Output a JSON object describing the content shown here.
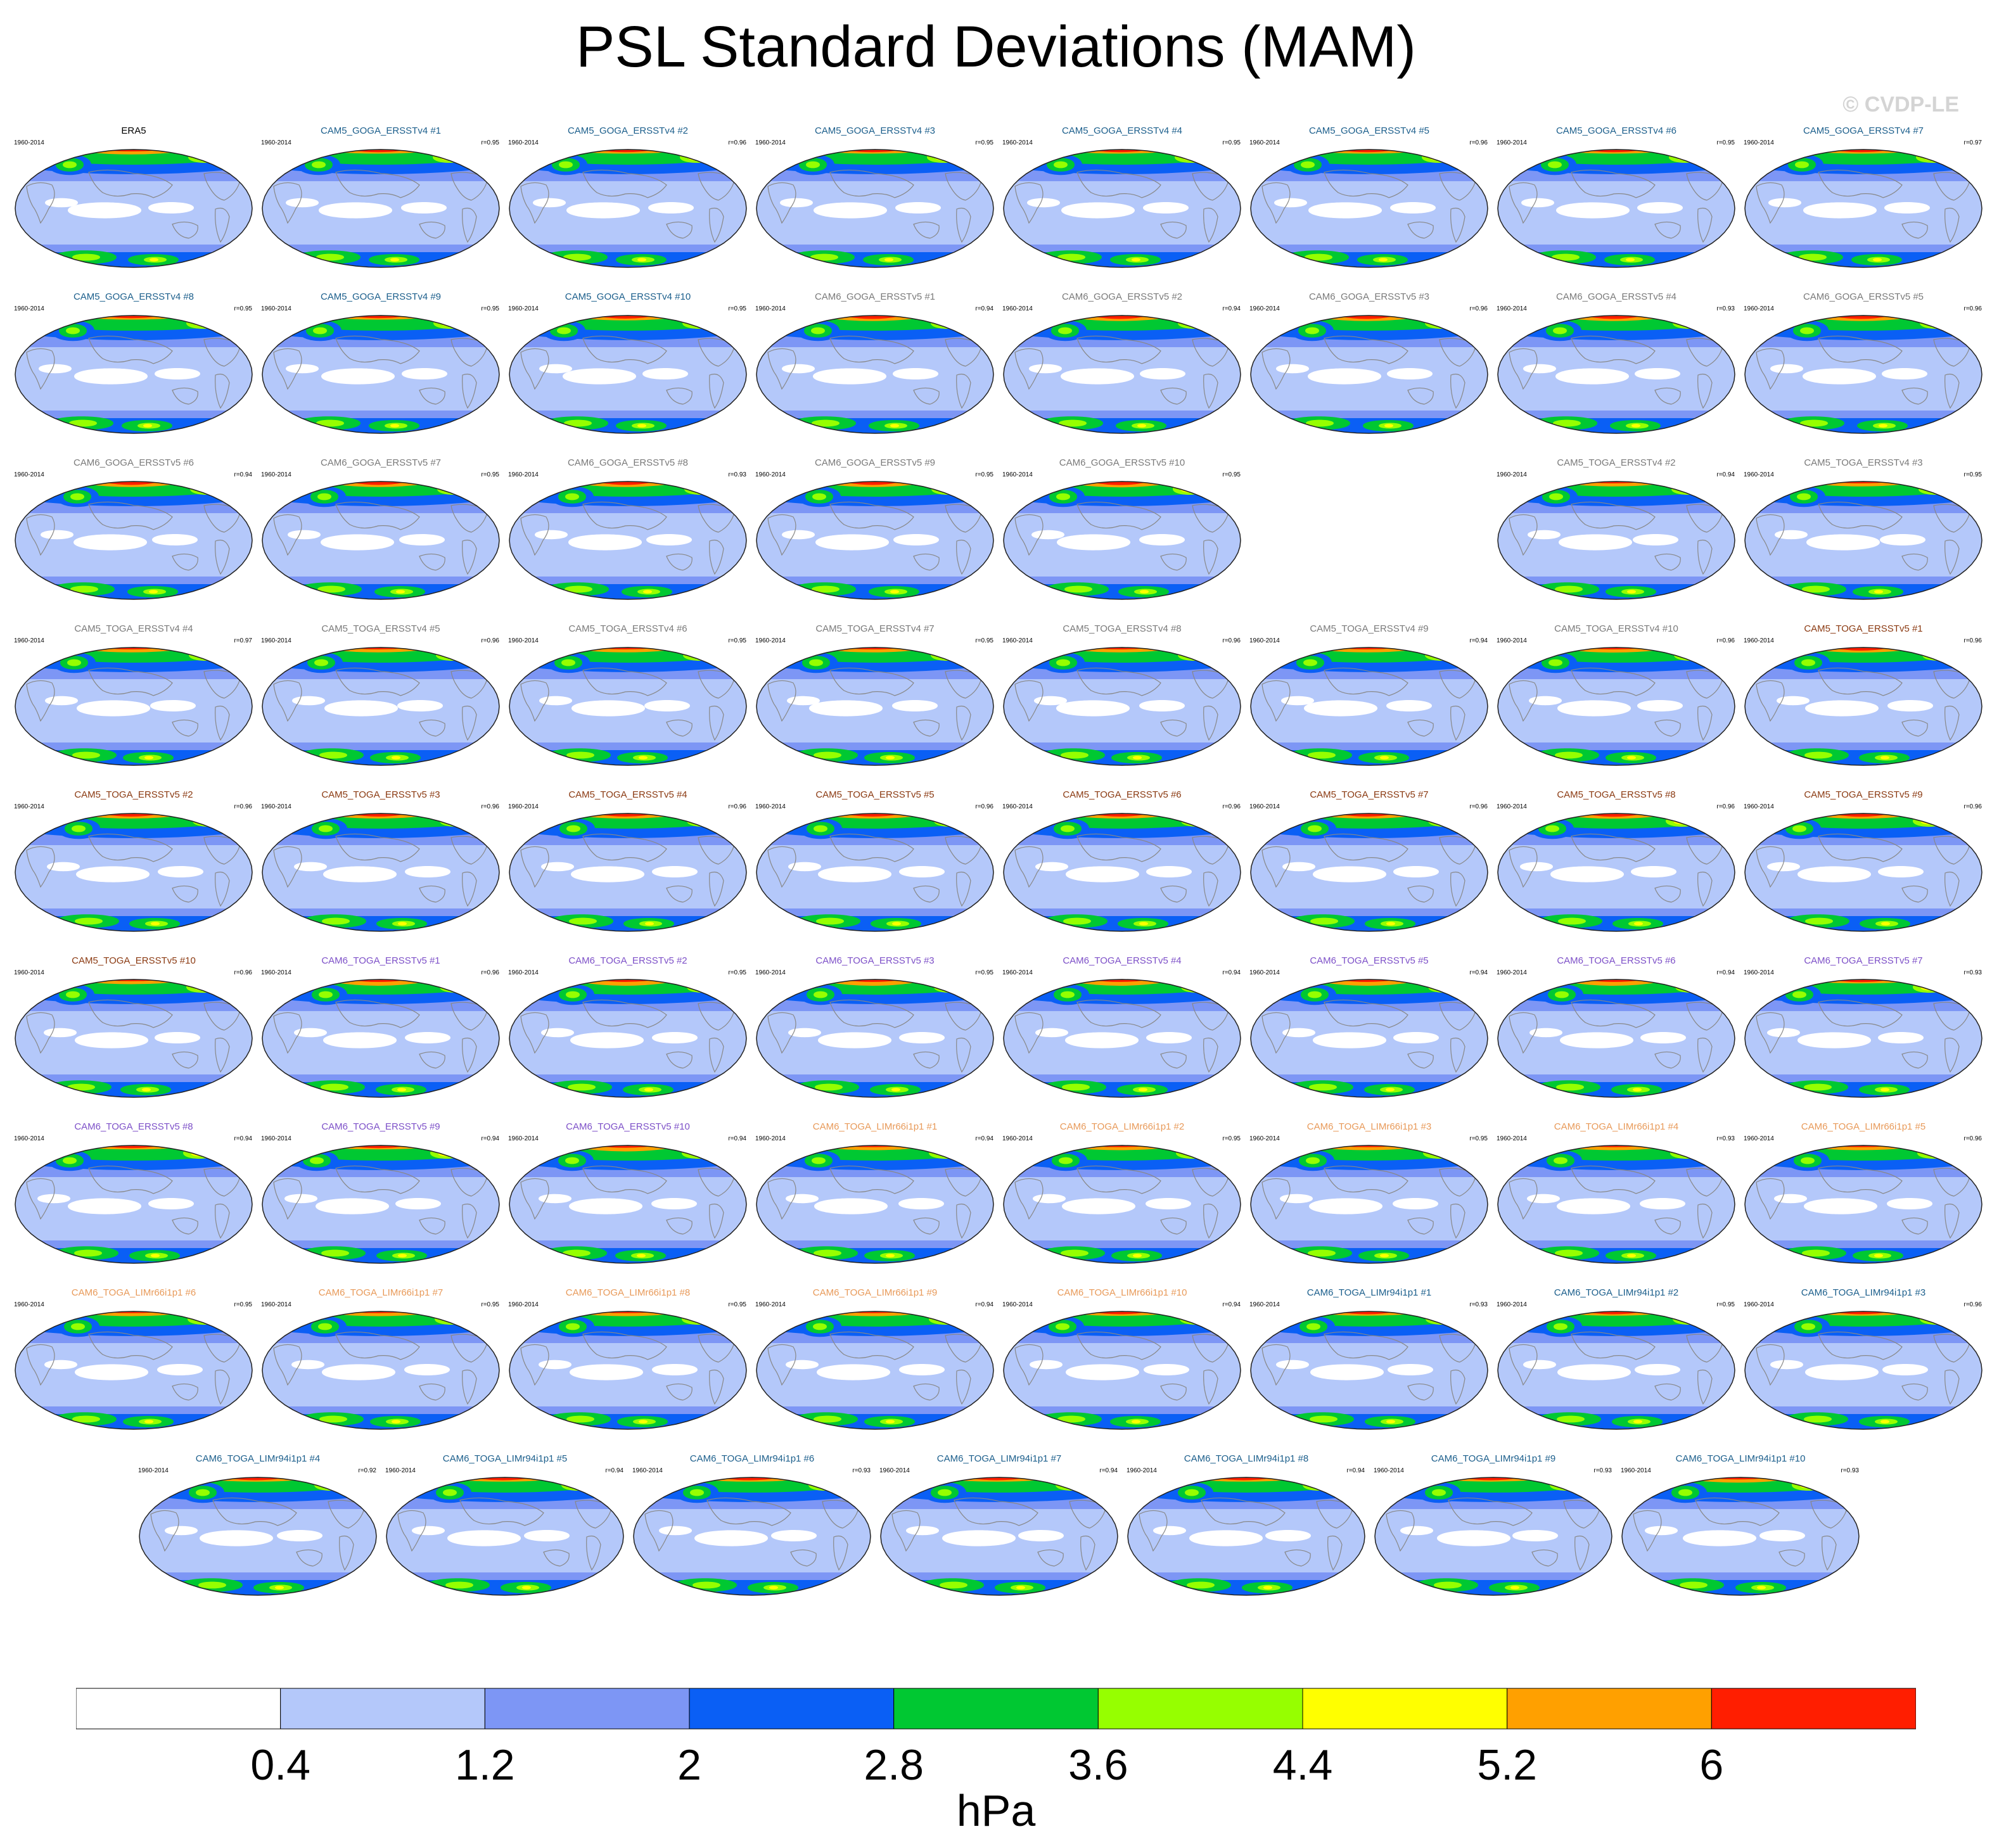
{
  "title": "PSL Standard Deviations (MAM)",
  "watermark": "© CVDP-LE",
  "default_years": "1960-2014",
  "group_colors": {
    "ref": "#000000",
    "CAM5_GOGA_ERSSTv4": "#1c5f8c",
    "CAM6_GOGA_ERSSTv5": "#7a7a7a",
    "CAM5_TOGA_ERSSTv4": "#7a7a7a",
    "CAM5_TOGA_ERSSTv5": "#8b3a12",
    "CAM6_TOGA_ERSSTv5": "#7d50c8",
    "CAM6_TOGA_LIMr66i1p1": "#e89a5a",
    "CAM6_TOGA_LIMr94i1p1": "#1c5f8c"
  },
  "panels": [
    {
      "row": 0,
      "col": 0,
      "title": "ERA5",
      "group": "ref",
      "r": ""
    },
    {
      "row": 0,
      "col": 1,
      "title": "CAM5_GOGA_ERSSTv4 #1",
      "group": "CAM5_GOGA_ERSSTv4",
      "r": "r=0.95"
    },
    {
      "row": 0,
      "col": 2,
      "title": "CAM5_GOGA_ERSSTv4 #2",
      "group": "CAM5_GOGA_ERSSTv4",
      "r": "r=0.96"
    },
    {
      "row": 0,
      "col": 3,
      "title": "CAM5_GOGA_ERSSTv4 #3",
      "group": "CAM5_GOGA_ERSSTv4",
      "r": "r=0.95"
    },
    {
      "row": 0,
      "col": 4,
      "title": "CAM5_GOGA_ERSSTv4 #4",
      "group": "CAM5_GOGA_ERSSTv4",
      "r": "r=0.95"
    },
    {
      "row": 0,
      "col": 5,
      "title": "CAM5_GOGA_ERSSTv4 #5",
      "group": "CAM5_GOGA_ERSSTv4",
      "r": "r=0.96"
    },
    {
      "row": 0,
      "col": 6,
      "title": "CAM5_GOGA_ERSSTv4 #6",
      "group": "CAM5_GOGA_ERSSTv4",
      "r": "r=0.95"
    },
    {
      "row": 0,
      "col": 7,
      "title": "CAM5_GOGA_ERSSTv4 #7",
      "group": "CAM5_GOGA_ERSSTv4",
      "r": "r=0.97"
    },
    {
      "row": 1,
      "col": 0,
      "title": "CAM5_GOGA_ERSSTv4 #8",
      "group": "CAM5_GOGA_ERSSTv4",
      "r": "r=0.95"
    },
    {
      "row": 1,
      "col": 1,
      "title": "CAM5_GOGA_ERSSTv4 #9",
      "group": "CAM5_GOGA_ERSSTv4",
      "r": "r=0.95"
    },
    {
      "row": 1,
      "col": 2,
      "title": "CAM5_GOGA_ERSSTv4 #10",
      "group": "CAM5_GOGA_ERSSTv4",
      "r": "r=0.95"
    },
    {
      "row": 1,
      "col": 3,
      "title": "CAM6_GOGA_ERSSTv5 #1",
      "group": "CAM6_GOGA_ERSSTv5",
      "r": "r=0.94"
    },
    {
      "row": 1,
      "col": 4,
      "title": "CAM6_GOGA_ERSSTv5 #2",
      "group": "CAM6_GOGA_ERSSTv5",
      "r": "r=0.94"
    },
    {
      "row": 1,
      "col": 5,
      "title": "CAM6_GOGA_ERSSTv5 #3",
      "group": "CAM6_GOGA_ERSSTv5",
      "r": "r=0.96"
    },
    {
      "row": 1,
      "col": 6,
      "title": "CAM6_GOGA_ERSSTv5 #4",
      "group": "CAM6_GOGA_ERSSTv5",
      "r": "r=0.93"
    },
    {
      "row": 1,
      "col": 7,
      "title": "CAM6_GOGA_ERSSTv5 #5",
      "group": "CAM6_GOGA_ERSSTv5",
      "r": "r=0.96"
    },
    {
      "row": 2,
      "col": 0,
      "title": "CAM6_GOGA_ERSSTv5 #6",
      "group": "CAM6_GOGA_ERSSTv5",
      "r": "r=0.94"
    },
    {
      "row": 2,
      "col": 1,
      "title": "CAM6_GOGA_ERSSTv5 #7",
      "group": "CAM6_GOGA_ERSSTv5",
      "r": "r=0.95"
    },
    {
      "row": 2,
      "col": 2,
      "title": "CAM6_GOGA_ERSSTv5 #8",
      "group": "CAM6_GOGA_ERSSTv5",
      "r": "r=0.93"
    },
    {
      "row": 2,
      "col": 3,
      "title": "CAM6_GOGA_ERSSTv5 #9",
      "group": "CAM6_GOGA_ERSSTv5",
      "r": "r=0.95"
    },
    {
      "row": 2,
      "col": 4,
      "title": "CAM6_GOGA_ERSSTv5 #10",
      "group": "CAM6_GOGA_ERSSTv5",
      "r": "r=0.95"
    },
    {
      "row": 2,
      "col": 6,
      "title": "CAM5_TOGA_ERSSTv4 #2",
      "group": "CAM5_TOGA_ERSSTv4",
      "r": "r=0.94"
    },
    {
      "row": 2,
      "col": 7,
      "title": "CAM5_TOGA_ERSSTv4 #3",
      "group": "CAM5_TOGA_ERSSTv4",
      "r": "r=0.95"
    },
    {
      "row": 3,
      "col": 0,
      "title": "CAM5_TOGA_ERSSTv4 #4",
      "group": "CAM5_TOGA_ERSSTv4",
      "r": "r=0.97"
    },
    {
      "row": 3,
      "col": 1,
      "title": "CAM5_TOGA_ERSSTv4 #5",
      "group": "CAM5_TOGA_ERSSTv4",
      "r": "r=0.96"
    },
    {
      "row": 3,
      "col": 2,
      "title": "CAM5_TOGA_ERSSTv4 #6",
      "group": "CAM5_TOGA_ERSSTv4",
      "r": "r=0.95"
    },
    {
      "row": 3,
      "col": 3,
      "title": "CAM5_TOGA_ERSSTv4 #7",
      "group": "CAM5_TOGA_ERSSTv4",
      "r": "r=0.95"
    },
    {
      "row": 3,
      "col": 4,
      "title": "CAM5_TOGA_ERSSTv4 #8",
      "group": "CAM5_TOGA_ERSSTv4",
      "r": "r=0.96"
    },
    {
      "row": 3,
      "col": 5,
      "title": "CAM5_TOGA_ERSSTv4 #9",
      "group": "CAM5_TOGA_ERSSTv4",
      "r": "r=0.94"
    },
    {
      "row": 3,
      "col": 6,
      "title": "CAM5_TOGA_ERSSTv4 #10",
      "group": "CAM5_TOGA_ERSSTv4",
      "r": "r=0.96"
    },
    {
      "row": 3,
      "col": 7,
      "title": "CAM5_TOGA_ERSSTv5 #1",
      "group": "CAM5_TOGA_ERSSTv5",
      "r": "r=0.96"
    },
    {
      "row": 4,
      "col": 0,
      "title": "CAM5_TOGA_ERSSTv5 #2",
      "group": "CAM5_TOGA_ERSSTv5",
      "r": "r=0.96"
    },
    {
      "row": 4,
      "col": 1,
      "title": "CAM5_TOGA_ERSSTv5 #3",
      "group": "CAM5_TOGA_ERSSTv5",
      "r": "r=0.96"
    },
    {
      "row": 4,
      "col": 2,
      "title": "CAM5_TOGA_ERSSTv5 #4",
      "group": "CAM5_TOGA_ERSSTv5",
      "r": "r=0.96"
    },
    {
      "row": 4,
      "col": 3,
      "title": "CAM5_TOGA_ERSSTv5 #5",
      "group": "CAM5_TOGA_ERSSTv5",
      "r": "r=0.96"
    },
    {
      "row": 4,
      "col": 4,
      "title": "CAM5_TOGA_ERSSTv5 #6",
      "group": "CAM5_TOGA_ERSSTv5",
      "r": "r=0.96"
    },
    {
      "row": 4,
      "col": 5,
      "title": "CAM5_TOGA_ERSSTv5 #7",
      "group": "CAM5_TOGA_ERSSTv5",
      "r": "r=0.96"
    },
    {
      "row": 4,
      "col": 6,
      "title": "CAM5_TOGA_ERSSTv5 #8",
      "group": "CAM5_TOGA_ERSSTv5",
      "r": "r=0.96"
    },
    {
      "row": 4,
      "col": 7,
      "title": "CAM5_TOGA_ERSSTv5 #9",
      "group": "CAM5_TOGA_ERSSTv5",
      "r": "r=0.96"
    },
    {
      "row": 5,
      "col": 0,
      "title": "CAM5_TOGA_ERSSTv5 #10",
      "group": "CAM5_TOGA_ERSSTv5",
      "r": "r=0.96"
    },
    {
      "row": 5,
      "col": 1,
      "title": "CAM6_TOGA_ERSSTv5 #1",
      "group": "CAM6_TOGA_ERSSTv5",
      "r": "r=0.96"
    },
    {
      "row": 5,
      "col": 2,
      "title": "CAM6_TOGA_ERSSTv5 #2",
      "group": "CAM6_TOGA_ERSSTv5",
      "r": "r=0.95"
    },
    {
      "row": 5,
      "col": 3,
      "title": "CAM6_TOGA_ERSSTv5 #3",
      "group": "CAM6_TOGA_ERSSTv5",
      "r": "r=0.95"
    },
    {
      "row": 5,
      "col": 4,
      "title": "CAM6_TOGA_ERSSTv5 #4",
      "group": "CAM6_TOGA_ERSSTv5",
      "r": "r=0.94"
    },
    {
      "row": 5,
      "col": 5,
      "title": "CAM6_TOGA_ERSSTv5 #5",
      "group": "CAM6_TOGA_ERSSTv5",
      "r": "r=0.94"
    },
    {
      "row": 5,
      "col": 6,
      "title": "CAM6_TOGA_ERSSTv5 #6",
      "group": "CAM6_TOGA_ERSSTv5",
      "r": "r=0.94"
    },
    {
      "row": 5,
      "col": 7,
      "title": "CAM6_TOGA_ERSSTv5 #7",
      "group": "CAM6_TOGA_ERSSTv5",
      "r": "r=0.93"
    },
    {
      "row": 6,
      "col": 0,
      "title": "CAM6_TOGA_ERSSTv5 #8",
      "group": "CAM6_TOGA_ERSSTv5",
      "r": "r=0.94"
    },
    {
      "row": 6,
      "col": 1,
      "title": "CAM6_TOGA_ERSSTv5 #9",
      "group": "CAM6_TOGA_ERSSTv5",
      "r": "r=0.94"
    },
    {
      "row": 6,
      "col": 2,
      "title": "CAM6_TOGA_ERSSTv5 #10",
      "group": "CAM6_TOGA_ERSSTv5",
      "r": "r=0.94"
    },
    {
      "row": 6,
      "col": 3,
      "title": "CAM6_TOGA_LIMr66i1p1 #1",
      "group": "CAM6_TOGA_LIMr66i1p1",
      "r": "r=0.94"
    },
    {
      "row": 6,
      "col": 4,
      "title": "CAM6_TOGA_LIMr66i1p1 #2",
      "group": "CAM6_TOGA_LIMr66i1p1",
      "r": "r=0.95"
    },
    {
      "row": 6,
      "col": 5,
      "title": "CAM6_TOGA_LIMr66i1p1 #3",
      "group": "CAM6_TOGA_LIMr66i1p1",
      "r": "r=0.95"
    },
    {
      "row": 6,
      "col": 6,
      "title": "CAM6_TOGA_LIMr66i1p1 #4",
      "group": "CAM6_TOGA_LIMr66i1p1",
      "r": "r=0.93"
    },
    {
      "row": 6,
      "col": 7,
      "title": "CAM6_TOGA_LIMr66i1p1 #5",
      "group": "CAM6_TOGA_LIMr66i1p1",
      "r": "r=0.96"
    },
    {
      "row": 7,
      "col": 0,
      "title": "CAM6_TOGA_LIMr66i1p1 #6",
      "group": "CAM6_TOGA_LIMr66i1p1",
      "r": "r=0.95"
    },
    {
      "row": 7,
      "col": 1,
      "title": "CAM6_TOGA_LIMr66i1p1 #7",
      "group": "CAM6_TOGA_LIMr66i1p1",
      "r": "r=0.95"
    },
    {
      "row": 7,
      "col": 2,
      "title": "CAM6_TOGA_LIMr66i1p1 #8",
      "group": "CAM6_TOGA_LIMr66i1p1",
      "r": "r=0.95"
    },
    {
      "row": 7,
      "col": 3,
      "title": "CAM6_TOGA_LIMr66i1p1 #9",
      "group": "CAM6_TOGA_LIMr66i1p1",
      "r": "r=0.94"
    },
    {
      "row": 7,
      "col": 4,
      "title": "CAM6_TOGA_LIMr66i1p1 #10",
      "group": "CAM6_TOGA_LIMr66i1p1",
      "r": "r=0.94"
    },
    {
      "row": 7,
      "col": 5,
      "title": "CAM6_TOGA_LIMr94i1p1 #1",
      "group": "CAM6_TOGA_LIMr94i1p1",
      "r": "r=0.93"
    },
    {
      "row": 7,
      "col": 6,
      "title": "CAM6_TOGA_LIMr94i1p1 #2",
      "group": "CAM6_TOGA_LIMr94i1p1",
      "r": "r=0.95"
    },
    {
      "row": 7,
      "col": 7,
      "title": "CAM6_TOGA_LIMr94i1p1 #3",
      "group": "CAM6_TOGA_LIMr94i1p1",
      "r": "r=0.96"
    },
    {
      "row": 8,
      "col": 0,
      "title": "CAM6_TOGA_LIMr94i1p1 #4",
      "group": "CAM6_TOGA_LIMr94i1p1",
      "r": "r=0.92"
    },
    {
      "row": 8,
      "col": 1,
      "title": "CAM6_TOGA_LIMr94i1p1 #5",
      "group": "CAM6_TOGA_LIMr94i1p1",
      "r": "r=0.94"
    },
    {
      "row": 8,
      "col": 2,
      "title": "CAM6_TOGA_LIMr94i1p1 #6",
      "group": "CAM6_TOGA_LIMr94i1p1",
      "r": "r=0.93"
    },
    {
      "row": 8,
      "col": 3,
      "title": "CAM6_TOGA_LIMr94i1p1 #7",
      "group": "CAM6_TOGA_LIMr94i1p1",
      "r": "r=0.94"
    },
    {
      "row": 8,
      "col": 4,
      "title": "CAM6_TOGA_LIMr94i1p1 #8",
      "group": "CAM6_TOGA_LIMr94i1p1",
      "r": "r=0.94"
    },
    {
      "row": 8,
      "col": 5,
      "title": "CAM6_TOGA_LIMr94i1p1 #9",
      "group": "CAM6_TOGA_LIMr94i1p1",
      "r": "r=0.93"
    },
    {
      "row": 8,
      "col": 6,
      "title": "CAM6_TOGA_LIMr94i1p1 #10",
      "group": "CAM6_TOGA_LIMr94i1p1",
      "r": "r=0.93"
    }
  ],
  "chart_data": {
    "type": "heatmap",
    "title": "PSL Standard Deviations (MAM)",
    "projection": "robinson",
    "colorbar": {
      "units": "hPa",
      "levels": [
        0.4,
        1.2,
        2,
        2.8,
        3.6,
        4.4,
        5.2,
        6
      ],
      "colors": [
        "#ffffff",
        "#b4c8fa",
        "#7d96f5",
        "#0a5ff5",
        "#00c832",
        "#96ff00",
        "#ffff00",
        "#ffa000",
        "#ff1e00"
      ]
    }
  }
}
